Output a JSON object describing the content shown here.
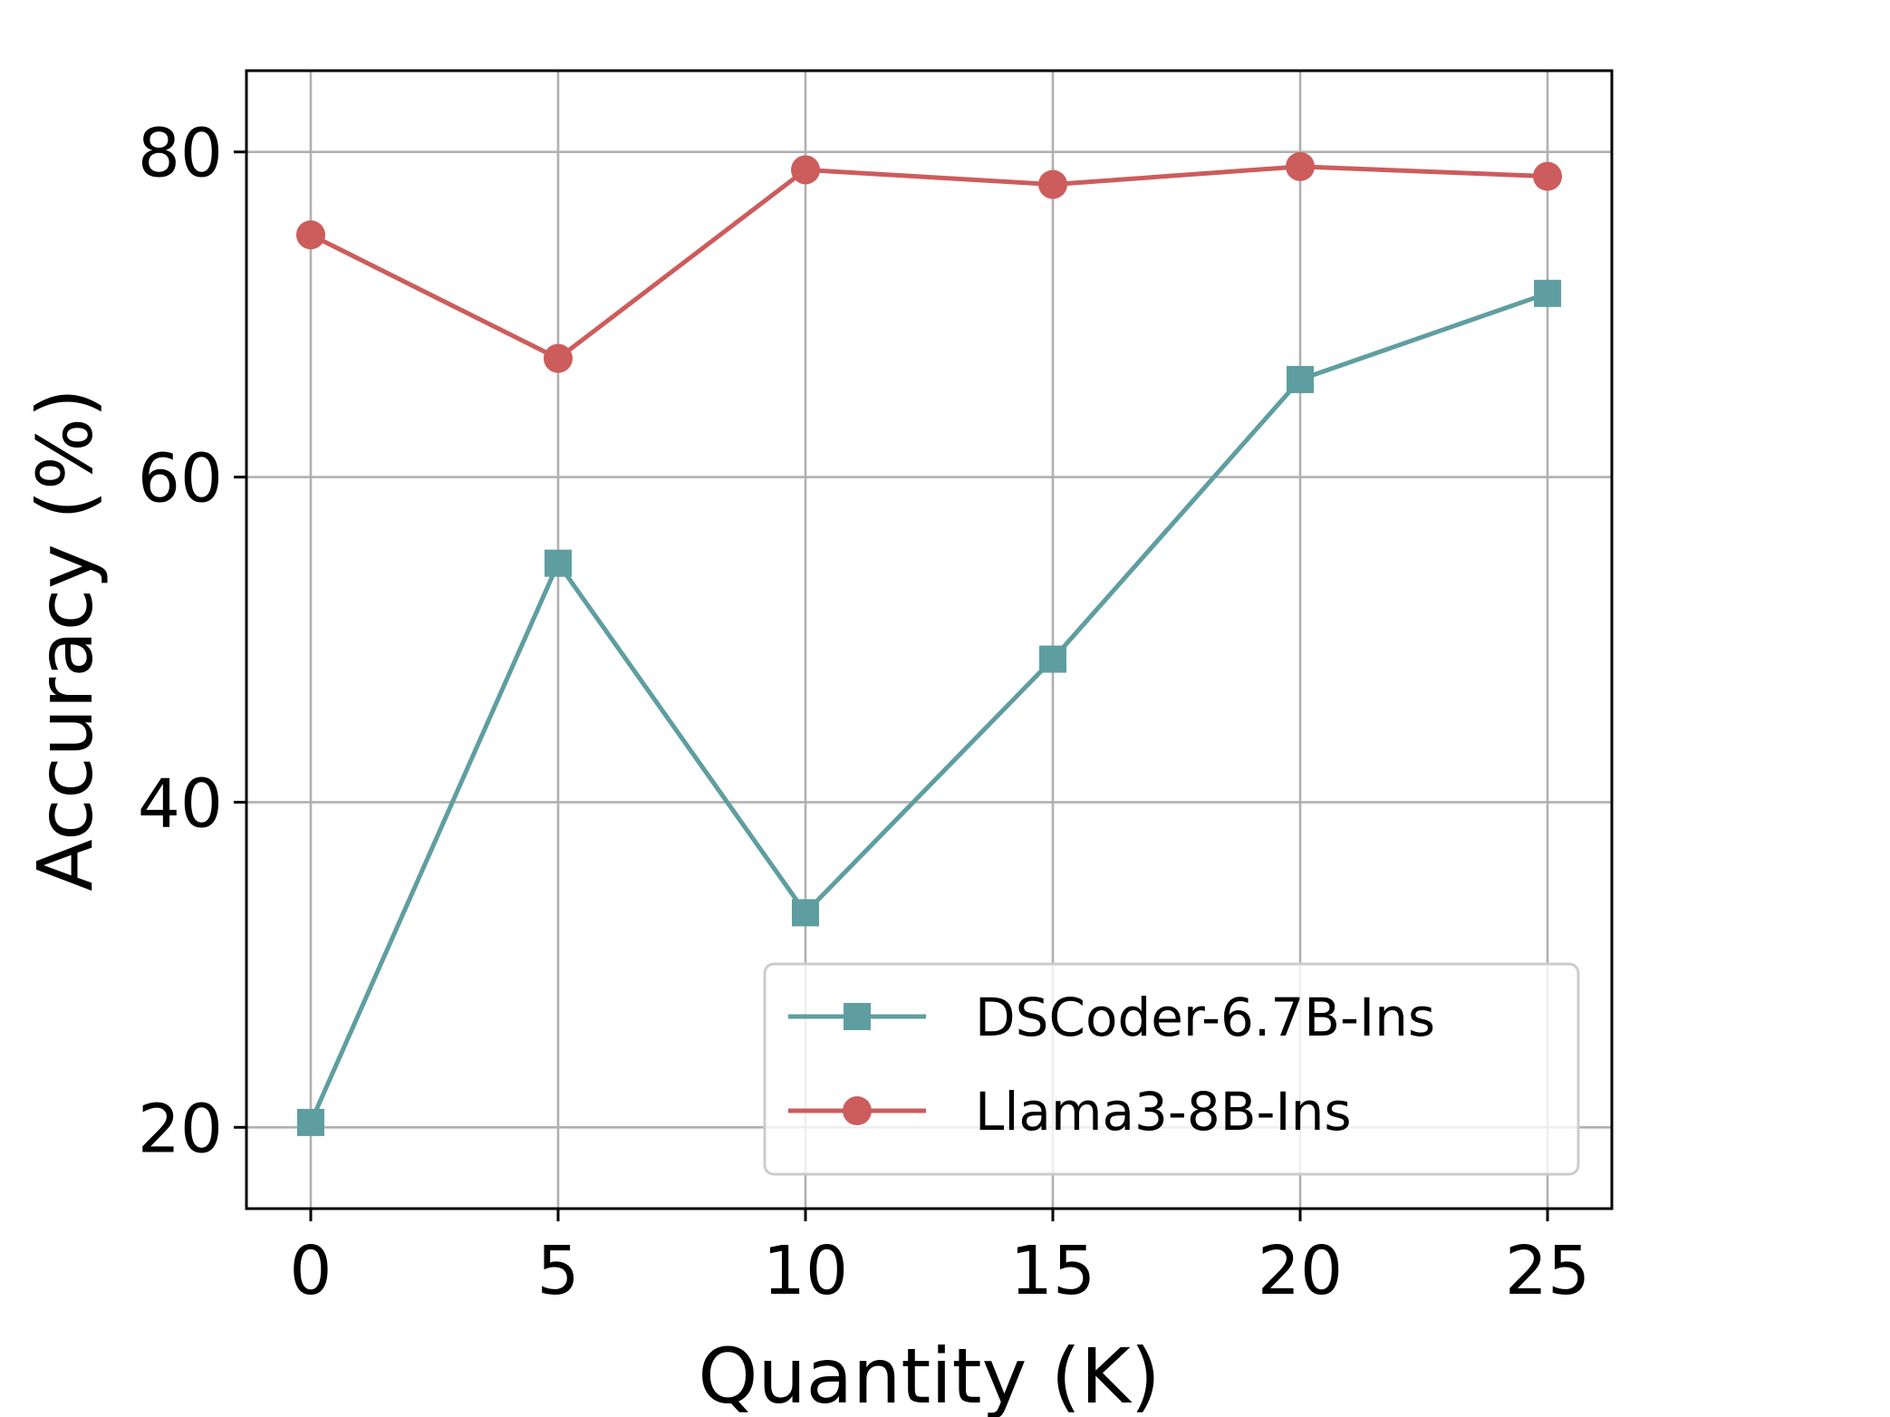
{
  "chart_data": {
    "type": "line",
    "title": "",
    "xlabel": "Quantity (K)",
    "ylabel": "Accuracy (%)",
    "x": [
      0,
      5,
      10,
      15,
      20,
      25
    ],
    "x_ticks": [
      0,
      5,
      10,
      15,
      20,
      25
    ],
    "y_ticks": [
      20,
      40,
      60,
      80
    ],
    "xlim": [
      -1.3,
      26.3
    ],
    "ylim": [
      15,
      85
    ],
    "grid": true,
    "legend_position": "lower-right",
    "series": [
      {
        "name": "DSCoder-6.7B-Ins",
        "color": "#5f9ea0",
        "marker": "square",
        "values": [
          20.3,
          54.7,
          33.2,
          48.8,
          66.0,
          71.3
        ]
      },
      {
        "name": "Llama3-8B-Ins",
        "color": "#cd5c5c",
        "marker": "circle",
        "values": [
          74.9,
          67.3,
          78.9,
          78.0,
          79.1,
          78.5
        ]
      }
    ]
  }
}
